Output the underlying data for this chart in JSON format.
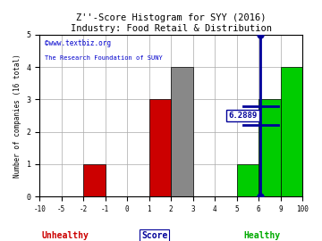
{
  "title": "Z''-Score Histogram for SYY (2016)",
  "subtitle": "Industry: Food Retail & Distribution",
  "xlabel": "Score",
  "ylabel": "Number of companies (16 total)",
  "watermark_line1": "©www.textbiz.org",
  "watermark_line2": "The Research Foundation of SUNY",
  "tick_labels": [
    "-10",
    "-5",
    "-2",
    "-1",
    "0",
    "1",
    "2",
    "3",
    "4",
    "5",
    "6",
    "9",
    "100"
  ],
  "tick_values": [
    -10,
    -5,
    -2,
    -1,
    0,
    1,
    2,
    3,
    4,
    5,
    6,
    9,
    100
  ],
  "counts": [
    0,
    0,
    1,
    0,
    0,
    3,
    4,
    0,
    0,
    1,
    3,
    4
  ],
  "bar_colors": [
    "#aa0000",
    "#aa0000",
    "#cc0000",
    "#aa0000",
    "#aa0000",
    "#cc0000",
    "#888888",
    "#888888",
    "#888888",
    "#00cc00",
    "#00cc00",
    "#00cc00"
  ],
  "syy_score": 6.2889,
  "syy_score_label": "6.2889",
  "score_line_color": "#000099",
  "ylim": [
    0,
    5
  ],
  "yticks": [
    0,
    1,
    2,
    3,
    4,
    5
  ],
  "bg_color": "#ffffff",
  "grid_color": "#aaaaaa",
  "title_color": "#000000",
  "unhealthy_color": "#cc0000",
  "healthy_color": "#00aa00",
  "watermark_color": "#0000cc",
  "xlabel_unhealthy": "Unhealthy",
  "xlabel_healthy": "Healthy"
}
